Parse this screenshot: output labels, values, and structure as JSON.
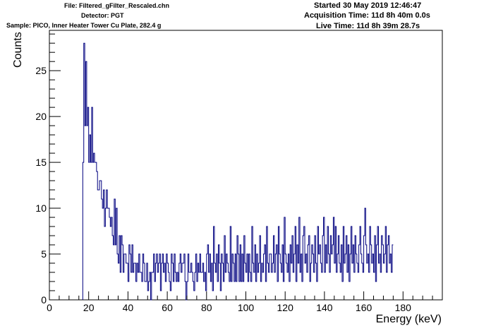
{
  "header": {
    "file": "File: Filtered_gFilter_Rescaled.chn",
    "detector": "Detector: PGT",
    "sample": "Sample: PICO, Inner Heater Tower Cu Plate, 282.4 g",
    "started": "Started 30 May 2019 12:46:47",
    "acquisition": "Acquisition Time: 11d 8h 40m 0.0s",
    "live": "Live Time: 11d 8h 39m 28.7s"
  },
  "colors": {
    "series": "#00007f",
    "axis": "#000000",
    "background": "#ffffff"
  },
  "chart_data": {
    "type": "histogram",
    "xlabel": "Energy (keV)",
    "ylabel": "Counts",
    "xlim": [
      0,
      200
    ],
    "ylim": [
      0,
      29.4
    ],
    "x_ticks": [
      0,
      20,
      40,
      60,
      80,
      100,
      120,
      140,
      160,
      180
    ],
    "y_ticks": [
      0,
      5,
      10,
      15,
      20,
      25
    ],
    "grid": false,
    "legend": "none",
    "bin_width": 0.5,
    "x_start": 17.0,
    "series": [
      {
        "values": [
          15,
          28,
          19,
          26,
          19,
          21,
          15,
          18,
          15,
          21,
          15,
          16,
          15,
          15,
          14,
          12,
          12,
          13,
          13,
          11,
          10,
          12,
          8,
          10,
          12,
          10,
          10,
          9,
          8,
          9,
          7,
          6,
          11,
          6,
          10,
          5,
          4,
          7,
          3,
          7,
          6,
          3,
          5,
          5,
          4,
          4,
          2,
          6,
          5,
          3,
          6,
          3,
          4,
          4,
          2,
          4,
          3,
          5,
          3,
          3,
          2,
          5,
          4,
          2,
          2,
          4,
          1,
          2,
          3,
          0,
          3,
          3,
          5,
          2,
          4,
          5,
          3,
          4,
          5,
          1,
          4,
          5,
          3,
          4,
          2,
          5,
          4,
          3,
          2,
          1,
          5,
          4,
          2,
          5,
          3,
          2,
          3,
          2,
          4,
          5,
          3,
          4,
          4,
          5,
          2,
          0,
          2,
          5,
          3,
          3,
          4,
          3,
          2,
          1,
          3,
          5,
          2,
          4,
          3,
          5,
          3,
          3,
          4,
          2,
          3,
          1,
          5,
          6,
          3,
          5,
          2,
          4,
          1,
          8,
          4,
          3,
          5,
          2,
          6,
          4,
          1,
          5,
          4,
          2,
          7,
          3,
          5,
          4,
          3,
          2,
          8,
          2,
          5,
          4,
          2,
          5,
          2,
          7,
          5,
          2,
          6,
          2,
          5,
          2,
          7,
          4,
          3,
          5,
          2,
          5,
          3,
          2,
          8,
          4,
          3,
          6,
          2,
          5,
          3,
          4,
          7,
          2,
          4,
          3,
          5,
          6,
          2,
          8,
          4,
          3,
          5,
          5,
          3,
          4,
          7,
          3,
          5,
          6,
          2,
          8,
          5,
          4,
          3,
          6,
          2,
          9,
          5,
          4,
          3,
          5,
          2,
          6,
          4,
          7,
          3,
          5,
          8,
          2,
          6,
          4,
          9,
          3,
          5,
          2,
          7,
          8,
          4,
          5,
          3,
          6,
          7,
          2,
          4,
          6,
          5,
          3,
          7,
          4,
          2,
          8,
          5,
          6,
          4,
          3,
          7,
          9,
          3,
          6,
          4,
          8,
          5,
          3,
          7,
          5,
          6,
          9,
          4,
          8,
          3,
          5,
          7,
          4,
          3,
          6,
          2,
          8,
          4,
          5,
          7,
          3,
          6,
          2,
          5,
          8,
          4,
          6,
          3,
          7,
          5,
          4,
          3,
          6,
          8,
          5,
          4,
          3,
          7,
          10,
          6,
          4,
          5,
          3,
          8,
          6,
          4,
          5,
          3,
          7,
          2,
          6,
          8,
          4,
          5,
          3,
          7,
          6,
          4,
          5,
          8,
          3,
          6,
          7,
          4,
          5,
          3,
          6
        ]
      }
    ]
  }
}
